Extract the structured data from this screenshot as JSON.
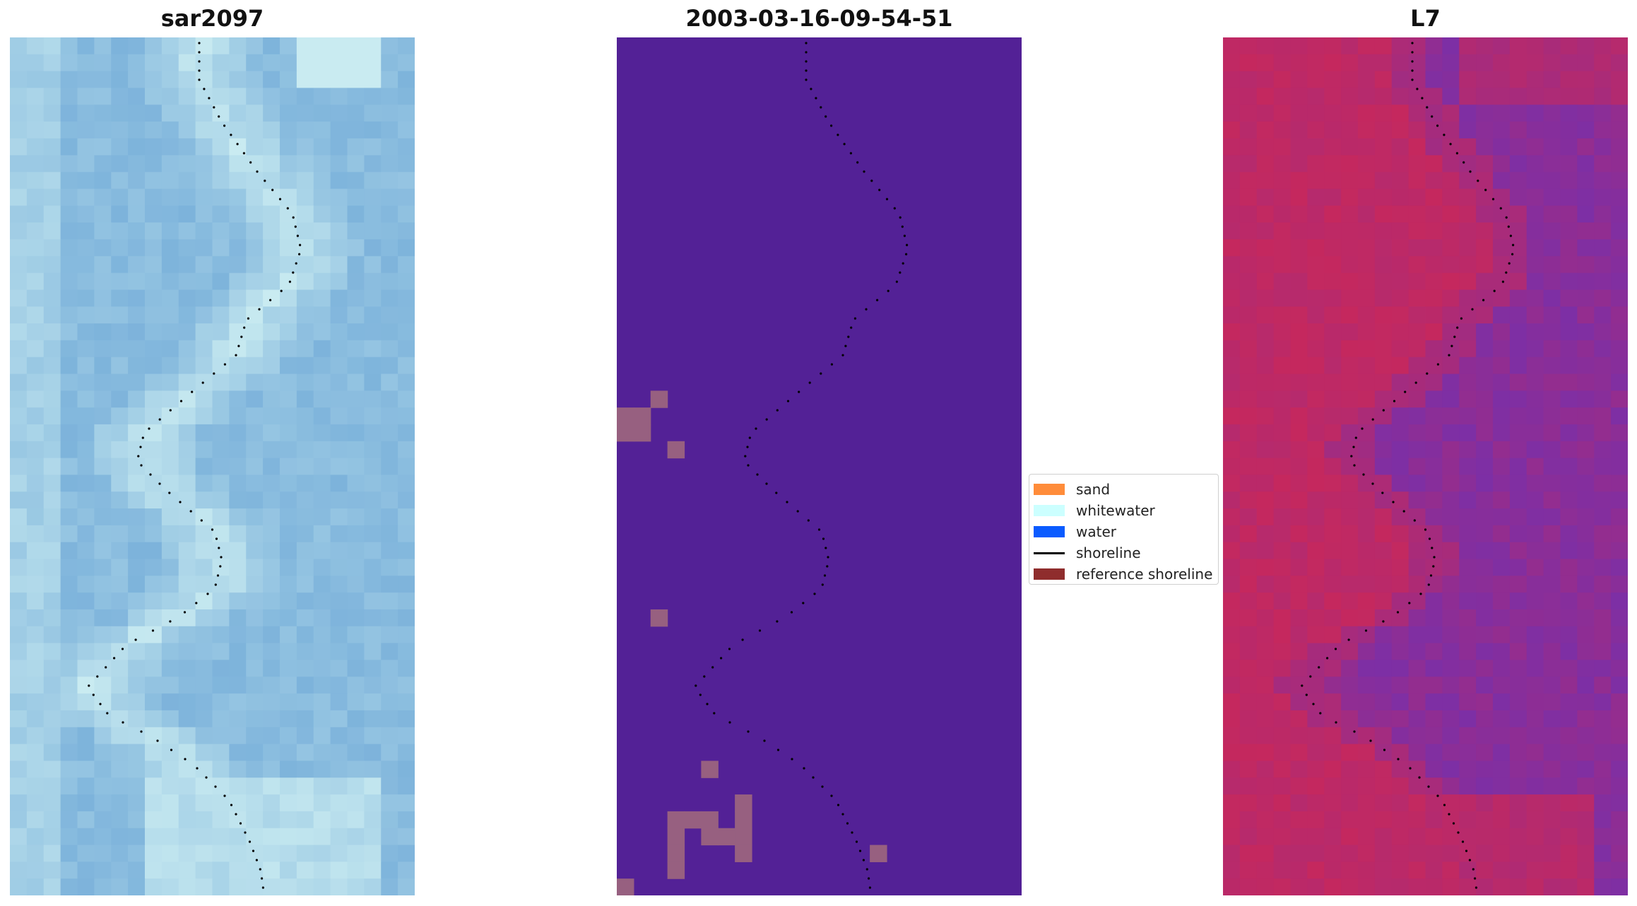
{
  "panels": [
    {
      "id": "sar",
      "title": "sar2097"
    },
    {
      "id": "classified",
      "title": "2003-03-16-09-54-51"
    },
    {
      "id": "l7",
      "title": "L7"
    }
  ],
  "legend": {
    "items": [
      {
        "label": "sand",
        "kind": "patch",
        "color": "#ff8c3a"
      },
      {
        "label": "whitewater",
        "kind": "patch",
        "color": "#ccffff"
      },
      {
        "label": "water",
        "kind": "patch",
        "color": "#0a5bff"
      },
      {
        "label": "shoreline",
        "kind": "line",
        "color": "#000000"
      },
      {
        "label": "reference shoreline",
        "kind": "patch",
        "color": "#8f2d2d"
      }
    ]
  },
  "colors": {
    "classified_background": "#532196",
    "classified_sand_pixels": "#976080",
    "sar_sea": "#7db3db",
    "sar_foam": "#cdeef2",
    "l7_land": "#c9285a",
    "l7_water": "#7d2fa5",
    "shoreline_dots": "#000000"
  }
}
